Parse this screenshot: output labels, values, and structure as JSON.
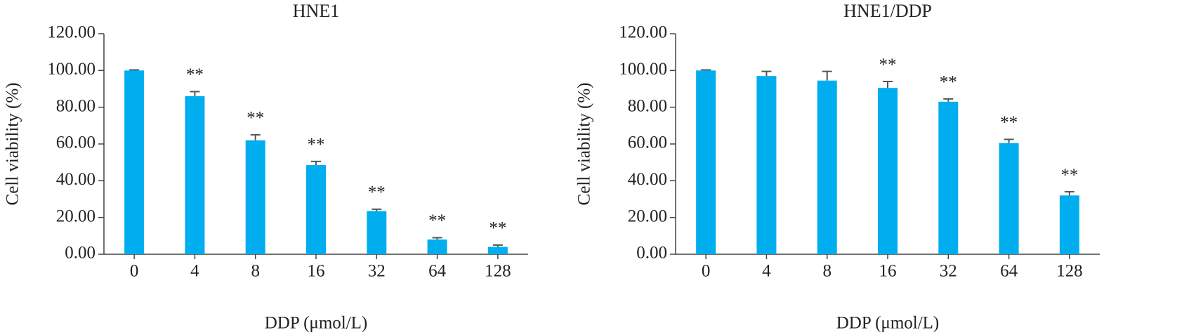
{
  "chart_data": [
    {
      "type": "bar",
      "title": "HNE1",
      "xlabel": "DDP (μmol/L)",
      "ylabel": "Cell viability (%)",
      "categories": [
        "0",
        "4",
        "8",
        "16",
        "32",
        "64",
        "128"
      ],
      "values": [
        100,
        86,
        62,
        48.5,
        23.5,
        8,
        4
      ],
      "errors": [
        0.3,
        2.5,
        3,
        2,
        1,
        1,
        1
      ],
      "annotations": [
        null,
        "**",
        "**",
        "**",
        "**",
        "**",
        "**"
      ],
      "color": "#00aeef",
      "ylim": [
        0,
        120
      ],
      "yticks": [
        {
          "value": 0,
          "label": "0.00"
        },
        {
          "value": 20,
          "label": "20.00"
        },
        {
          "value": 40,
          "label": "40.00"
        },
        {
          "value": 60,
          "label": "60.00"
        },
        {
          "value": 80,
          "label": "80.00"
        },
        {
          "value": 100,
          "label": "100.00"
        },
        {
          "value": 120,
          "label": "120.00"
        }
      ]
    },
    {
      "type": "bar",
      "title": "HNE1/DDP",
      "xlabel": "DDP (μmol/L)",
      "ylabel": "Cell viability (%)",
      "categories": [
        "0",
        "4",
        "8",
        "16",
        "32",
        "64",
        "128"
      ],
      "values": [
        100,
        97,
        94.5,
        90.5,
        83,
        60.5,
        32
      ],
      "errors": [
        0.3,
        2.5,
        5,
        3.5,
        1.5,
        2,
        2
      ],
      "annotations": [
        null,
        null,
        null,
        "**",
        "**",
        "**",
        "**"
      ],
      "color": "#00aeef",
      "ylim": [
        0,
        120
      ],
      "yticks": [
        {
          "value": 0,
          "label": "0.00"
        },
        {
          "value": 20,
          "label": "20.00"
        },
        {
          "value": 40,
          "label": "40.00"
        },
        {
          "value": 60,
          "label": "60.00"
        },
        {
          "value": 80,
          "label": "80.00"
        },
        {
          "value": 100,
          "label": "100.00"
        },
        {
          "value": 120,
          "label": "120.00"
        }
      ]
    }
  ]
}
